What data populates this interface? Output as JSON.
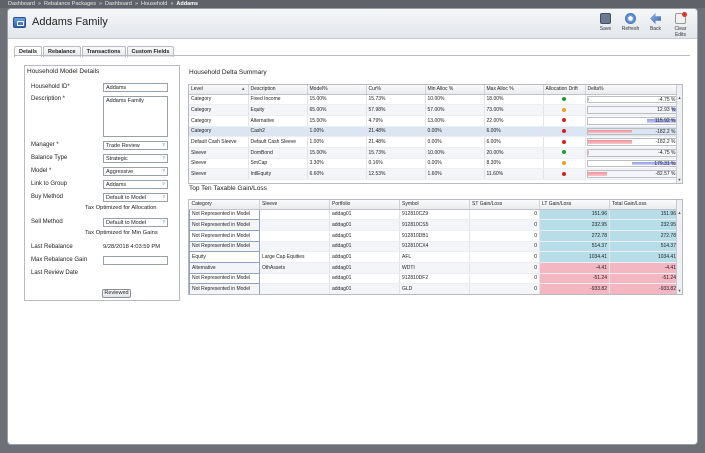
{
  "breadcrumb": {
    "items": [
      "Dashboard",
      "Rebalance Packages",
      "Dashboard",
      "Household",
      "Addams"
    ],
    "separator": "»"
  },
  "window": {
    "title": "Addams Family"
  },
  "toolbar": {
    "save": "Save",
    "refresh": "Refresh",
    "back": "Back",
    "clear_edits": "Clear Edits"
  },
  "tabs": [
    "Details",
    "Rebalance",
    "Transactions",
    "Custom Fields"
  ],
  "household_model": {
    "title": "Household Model Details",
    "household_id_label": "Household ID*",
    "household_id": "Addams",
    "description_label": "Description *",
    "description": "Addams Family",
    "manager_label": "Manager *",
    "manager": "Trade Review",
    "balance_type_label": "Balance Type",
    "balance_type": "Strategic",
    "model_label": "Model *",
    "model": "Aggressive",
    "link_to_group_label": "Link to Group",
    "link_to_group": "Addams",
    "buy_method_label": "Buy Method",
    "buy_method": "Default to Model",
    "buy_note": "Tax Optimized for Allocation",
    "sell_method_label": "Sell Method",
    "sell_method": "Default to Model",
    "sell_note": "Tax Optimized for Min Gains",
    "last_rebalance_label": "Last Rebalance",
    "last_rebalance": "9/28/2018 4:03:59 PM",
    "max_rebalance_gain_label": "Max Rebalance Gain",
    "max_rebalance_gain": "",
    "last_review_date_label": "Last Review Date",
    "reviewed_button": "Reviewed"
  },
  "delta_summary": {
    "title": "Household Delta Summary",
    "columns": [
      "Level",
      "Description",
      "Model%",
      "Cur%",
      "Min Alloc %",
      "Max Alloc %",
      "Allocation Drift",
      "Delta%"
    ],
    "rows": [
      [
        "Category",
        "Fixed Income",
        "15.00%",
        "15.73%",
        "10.00%",
        "18.00%",
        "green",
        "-4.75 %",
        -4.75
      ],
      [
        "Category",
        "Equity",
        "65.00%",
        "57.98%",
        "57.00%",
        "73.00%",
        "orange",
        "12.93 %",
        12.93
      ],
      [
        "Category",
        "Alternative",
        "15.00%",
        "4.79%",
        "13.00%",
        "22.00%",
        "red",
        "115.92 %",
        115.92
      ],
      [
        "Category",
        "Cash2",
        "1.00%",
        "21.48%",
        "0.00%",
        "6.00%",
        "red",
        "-182.2 %",
        -182.2
      ],
      [
        "Default Cash Sleeve",
        "Default Cash Sleeve",
        "1.00%",
        "21.48%",
        "0.00%",
        "6.00%",
        "red",
        "-182.2 %",
        -182.2
      ],
      [
        "Sleeve",
        "DomBond",
        "15.00%",
        "15.73%",
        "10.00%",
        "20.00%",
        "green",
        "-4.75 %",
        -4.75
      ],
      [
        "Sleeve",
        "SmCap",
        "3.30%",
        "0.16%",
        "0.00%",
        "8.30%",
        "orange",
        "179.31 %",
        179.31
      ],
      [
        "Sleeve",
        "IntlEquity",
        "6.60%",
        "12.53%",
        "1.60%",
        "11.60%",
        "red",
        "-82.57 %",
        -82.57
      ]
    ]
  },
  "gain_loss": {
    "title": "Top Ten Taxable Gain/Loss",
    "columns": [
      "Category",
      "Sleeve",
      "Portfolio",
      "Symbol",
      "ST Gain/Loss",
      "LT Gain/Loss",
      "Total Gain/Loss"
    ],
    "rows": [
      [
        "Not Represented in Model",
        "",
        "addag01",
        "912810CZ9",
        "0",
        "151.96",
        "151.96"
      ],
      [
        "Not Represented in Model",
        "",
        "addag01",
        "912810CS5",
        "0",
        "232.95",
        "232.95"
      ],
      [
        "Not Represented in Model",
        "",
        "addag01",
        "912810DB1",
        "0",
        "272.78",
        "272.78"
      ],
      [
        "Not Represented in Model",
        "",
        "addag01",
        "912810CX4",
        "0",
        "514.37",
        "514.37"
      ],
      [
        "Equity",
        "Large Cap Equities",
        "addag01",
        "AFL",
        "0",
        "1034.41",
        "1034.41"
      ],
      [
        "Alternative",
        "OthAssets",
        "addag01",
        "WDTI",
        "0",
        "-4.41",
        "-4.41"
      ],
      [
        "Not Represented in Model",
        "",
        "addag01",
        "912810DF2",
        "0",
        "-51.24",
        "-51.24"
      ],
      [
        "Not Represented in Model",
        "",
        "addag01",
        "GLD",
        "0",
        "-933.82",
        "-933.82"
      ]
    ]
  },
  "colors": {
    "green": "#1f9a2e",
    "orange": "#f0a020",
    "red": "#d8201e",
    "positive_fill": "#b6dde8",
    "negative_fill": "#f4b7c1",
    "delta_positive": "#8f9be8",
    "delta_negative": "#f08f92"
  },
  "icons": [
    "save-icon",
    "refresh-icon",
    "back-icon",
    "clear-edits-icon",
    "chevron-down-icon",
    "sort-arrow-icon"
  ]
}
